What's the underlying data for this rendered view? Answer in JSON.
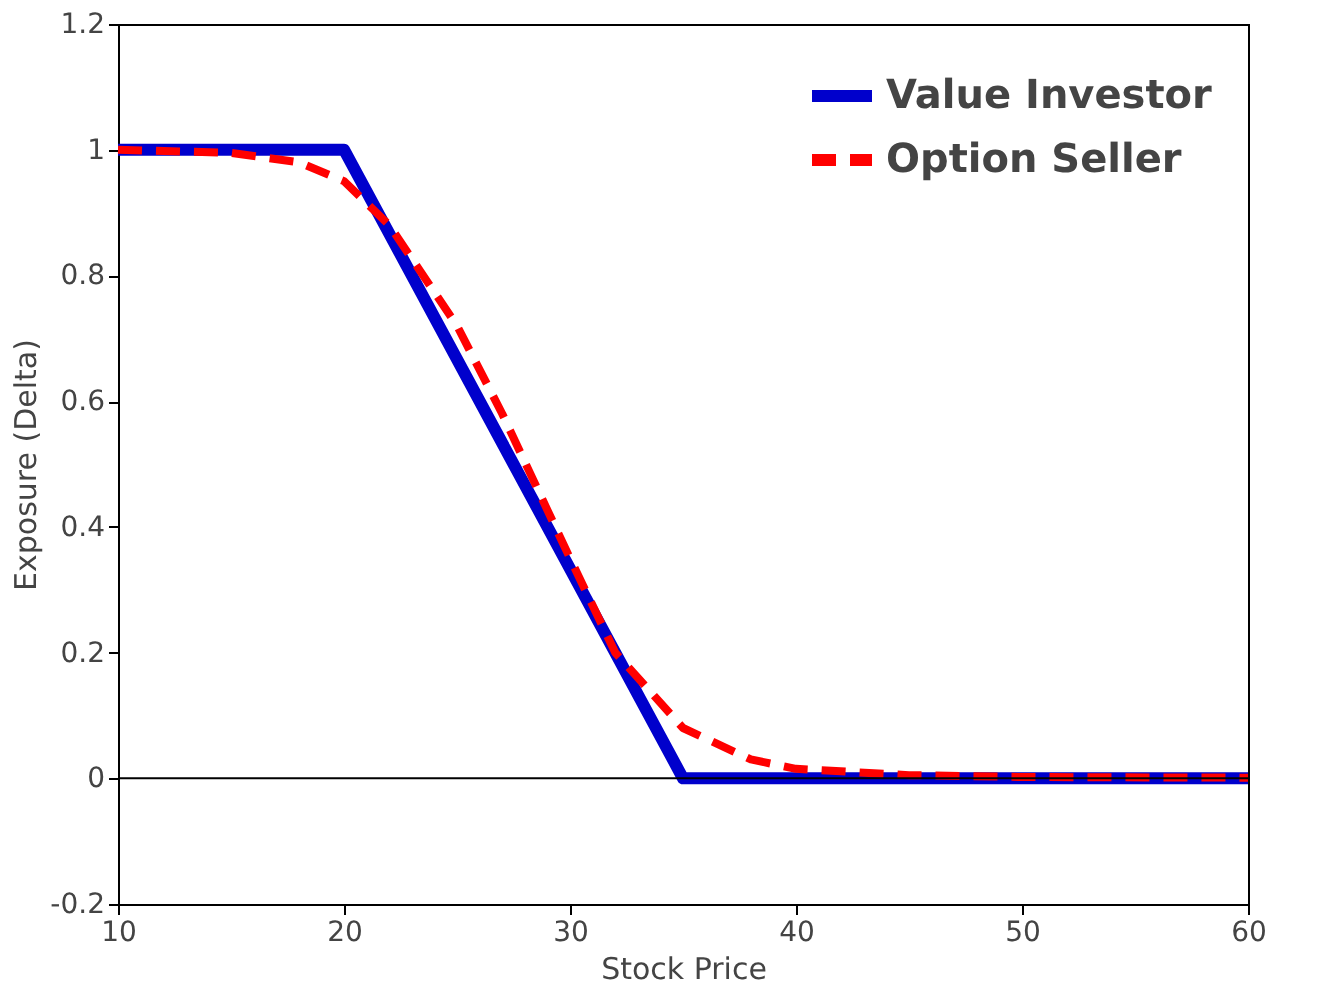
{
  "chart_data": {
    "type": "line",
    "xlabel": "Stock Price",
    "ylabel": "Exposure (Delta)",
    "xlim": [
      10,
      60
    ],
    "xticks": [
      10,
      20,
      30,
      40,
      50,
      60
    ],
    "ylim": [
      -0.2,
      1.2
    ],
    "yticks": [
      -0.2,
      0,
      0.2,
      0.4,
      0.6,
      0.8,
      1,
      1.2
    ],
    "grid": false,
    "legend": "top right",
    "marker": "none",
    "ref_lines": [
      {
        "axis": "y",
        "value": 0,
        "color": "#000000"
      }
    ],
    "series": [
      {
        "name": "Value Investor",
        "color": "#0000cc",
        "line_style": "solid",
        "x": [
          10,
          20,
          35,
          60
        ],
        "values": [
          1,
          1,
          0,
          0
        ]
      },
      {
        "name": "Option Seller",
        "color": "#ff0000",
        "line_style": "dashed",
        "x": [
          10,
          15,
          18,
          20,
          22,
          25,
          27,
          30,
          32,
          35,
          38,
          40,
          45,
          50,
          60
        ],
        "values": [
          1,
          0.995,
          0.98,
          0.95,
          0.88,
          0.72,
          0.58,
          0.35,
          0.2,
          0.08,
          0.03,
          0.015,
          0.005,
          0.002,
          0.001
        ]
      }
    ]
  }
}
